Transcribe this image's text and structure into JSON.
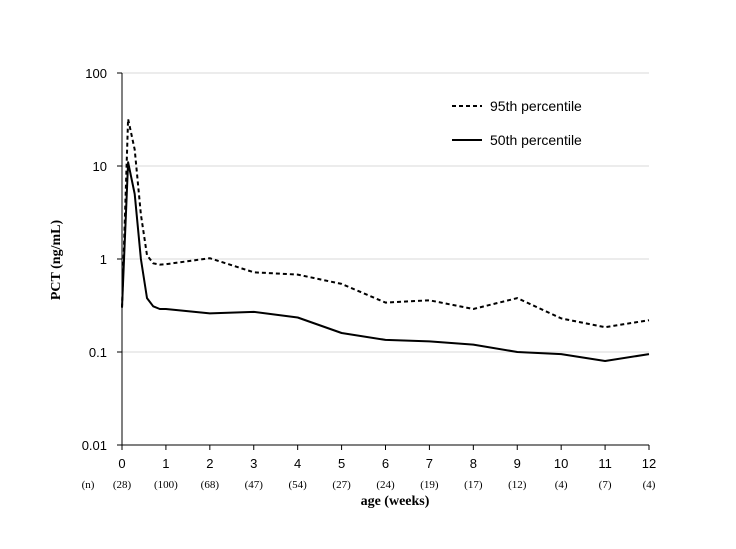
{
  "chart_data": {
    "type": "line",
    "title": "",
    "xlabel": "age (weeks)",
    "ylabel": "PCT (ng/mL)",
    "y_scale": "log",
    "ylim": [
      0.01,
      100
    ],
    "xlim": [
      0,
      12
    ],
    "y_ticks": [
      {
        "value": 0.01,
        "label": "0.01"
      },
      {
        "value": 0.1,
        "label": "0.1"
      },
      {
        "value": 1,
        "label": "1"
      },
      {
        "value": 10,
        "label": "10"
      },
      {
        "value": 100,
        "label": "100"
      }
    ],
    "x_ticks": [
      0,
      1,
      2,
      3,
      4,
      5,
      6,
      7,
      8,
      9,
      10,
      11,
      12
    ],
    "x_tick_labels": [
      "0",
      "1",
      "2",
      "3",
      "4",
      "5",
      "6",
      "7",
      "8",
      "9",
      "10",
      "11",
      "12"
    ],
    "n_label": "(n)",
    "n_counts": [
      "(28)",
      "(100)",
      "(68)",
      "(47)",
      "(54)",
      "(27)",
      "(24)",
      "(19)",
      "(17)",
      "(12)",
      "(4)",
      "(7)",
      "(4)"
    ],
    "grid": "horizontal",
    "legend_position": "top-right",
    "series": [
      {
        "name": "95th percentile",
        "style": "dashed",
        "color": "#000000",
        "points": [
          [
            0,
            0.3
          ],
          [
            0.14,
            32
          ],
          [
            0.29,
            15
          ],
          [
            0.43,
            3
          ],
          [
            0.57,
            1.1
          ],
          [
            0.71,
            0.9
          ],
          [
            0.86,
            0.87
          ],
          [
            1,
            0.88
          ],
          [
            2,
            1.02
          ],
          [
            3,
            0.72
          ],
          [
            4,
            0.68
          ],
          [
            5,
            0.54
          ],
          [
            6,
            0.34
          ],
          [
            7,
            0.36
          ],
          [
            8,
            0.29
          ],
          [
            9,
            0.38
          ],
          [
            10,
            0.23
          ],
          [
            11,
            0.185
          ],
          [
            12,
            0.22
          ]
        ]
      },
      {
        "name": "50th percentile",
        "style": "solid",
        "color": "#000000",
        "points": [
          [
            0,
            0.3
          ],
          [
            0.14,
            11
          ],
          [
            0.29,
            5
          ],
          [
            0.43,
            1.0
          ],
          [
            0.57,
            0.38
          ],
          [
            0.71,
            0.31
          ],
          [
            0.86,
            0.29
          ],
          [
            1,
            0.29
          ],
          [
            2,
            0.26
          ],
          [
            3,
            0.27
          ],
          [
            4,
            0.235
          ],
          [
            5,
            0.16
          ],
          [
            6,
            0.135
          ],
          [
            7,
            0.13
          ],
          [
            8,
            0.12
          ],
          [
            9,
            0.1
          ],
          [
            10,
            0.095
          ],
          [
            11,
            0.08
          ],
          [
            12,
            0.095
          ]
        ]
      }
    ]
  }
}
